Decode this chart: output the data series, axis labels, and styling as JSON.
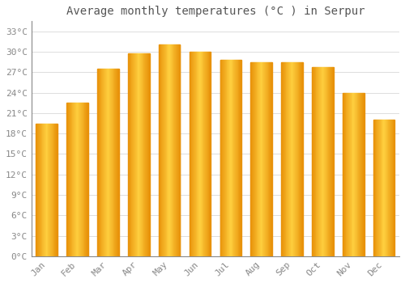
{
  "title": "Average monthly temperatures (°C ) in Serpur",
  "months": [
    "Jan",
    "Feb",
    "Mar",
    "Apr",
    "May",
    "Jun",
    "Jul",
    "Aug",
    "Sep",
    "Oct",
    "Nov",
    "Dec"
  ],
  "temperatures": [
    19.5,
    22.5,
    27.5,
    29.8,
    31.1,
    30.0,
    28.8,
    28.5,
    28.5,
    27.8,
    24.0,
    20.0
  ],
  "bar_color_edge": "#E8920A",
  "bar_color_center": "#FFD040",
  "background_color": "#FFFFFF",
  "grid_color": "#DDDDDD",
  "ytick_labels": [
    "0°C",
    "3°C",
    "6°C",
    "9°C",
    "12°C",
    "15°C",
    "18°C",
    "21°C",
    "24°C",
    "27°C",
    "30°C",
    "33°C"
  ],
  "ytick_values": [
    0,
    3,
    6,
    9,
    12,
    15,
    18,
    21,
    24,
    27,
    30,
    33
  ],
  "ylim": [
    0,
    34.5
  ],
  "title_fontsize": 10,
  "tick_fontsize": 8,
  "font_color": "#888888",
  "title_color": "#555555"
}
